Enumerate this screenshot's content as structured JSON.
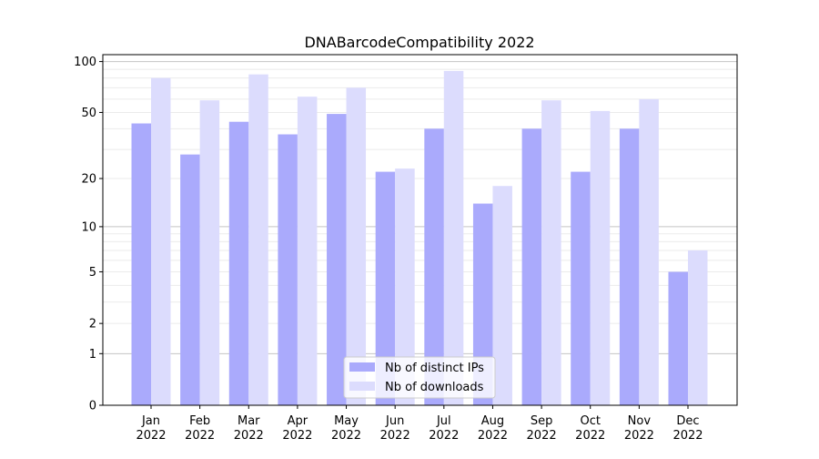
{
  "chart_data": {
    "type": "bar",
    "title": "DNABarcodeCompatibility 2022",
    "xlabel": "",
    "ylabel": "",
    "yscale": "symlog",
    "ylim": [
      0,
      110
    ],
    "yticks": [
      0,
      1,
      2,
      5,
      10,
      20,
      50,
      100
    ],
    "grid": true,
    "legend_position": "bottom-center",
    "categories": [
      "Jan\n2022",
      "Feb\n2022",
      "Mar\n2022",
      "Apr\n2022",
      "May\n2022",
      "Jun\n2022",
      "Jul\n2022",
      "Aug\n2022",
      "Sep\n2022",
      "Oct\n2022",
      "Nov\n2022",
      "Dec\n2022"
    ],
    "series": [
      {
        "name": "Nb of distinct IPs",
        "color": "#aaaafc",
        "values": [
          43,
          28,
          44,
          37,
          49,
          22,
          40,
          14,
          40,
          22,
          40,
          5
        ]
      },
      {
        "name": "Nb of downloads",
        "color": "#dcdcfd",
        "values": [
          80,
          59,
          84,
          62,
          70,
          23,
          88,
          18,
          59,
          51,
          60,
          7
        ]
      }
    ]
  }
}
